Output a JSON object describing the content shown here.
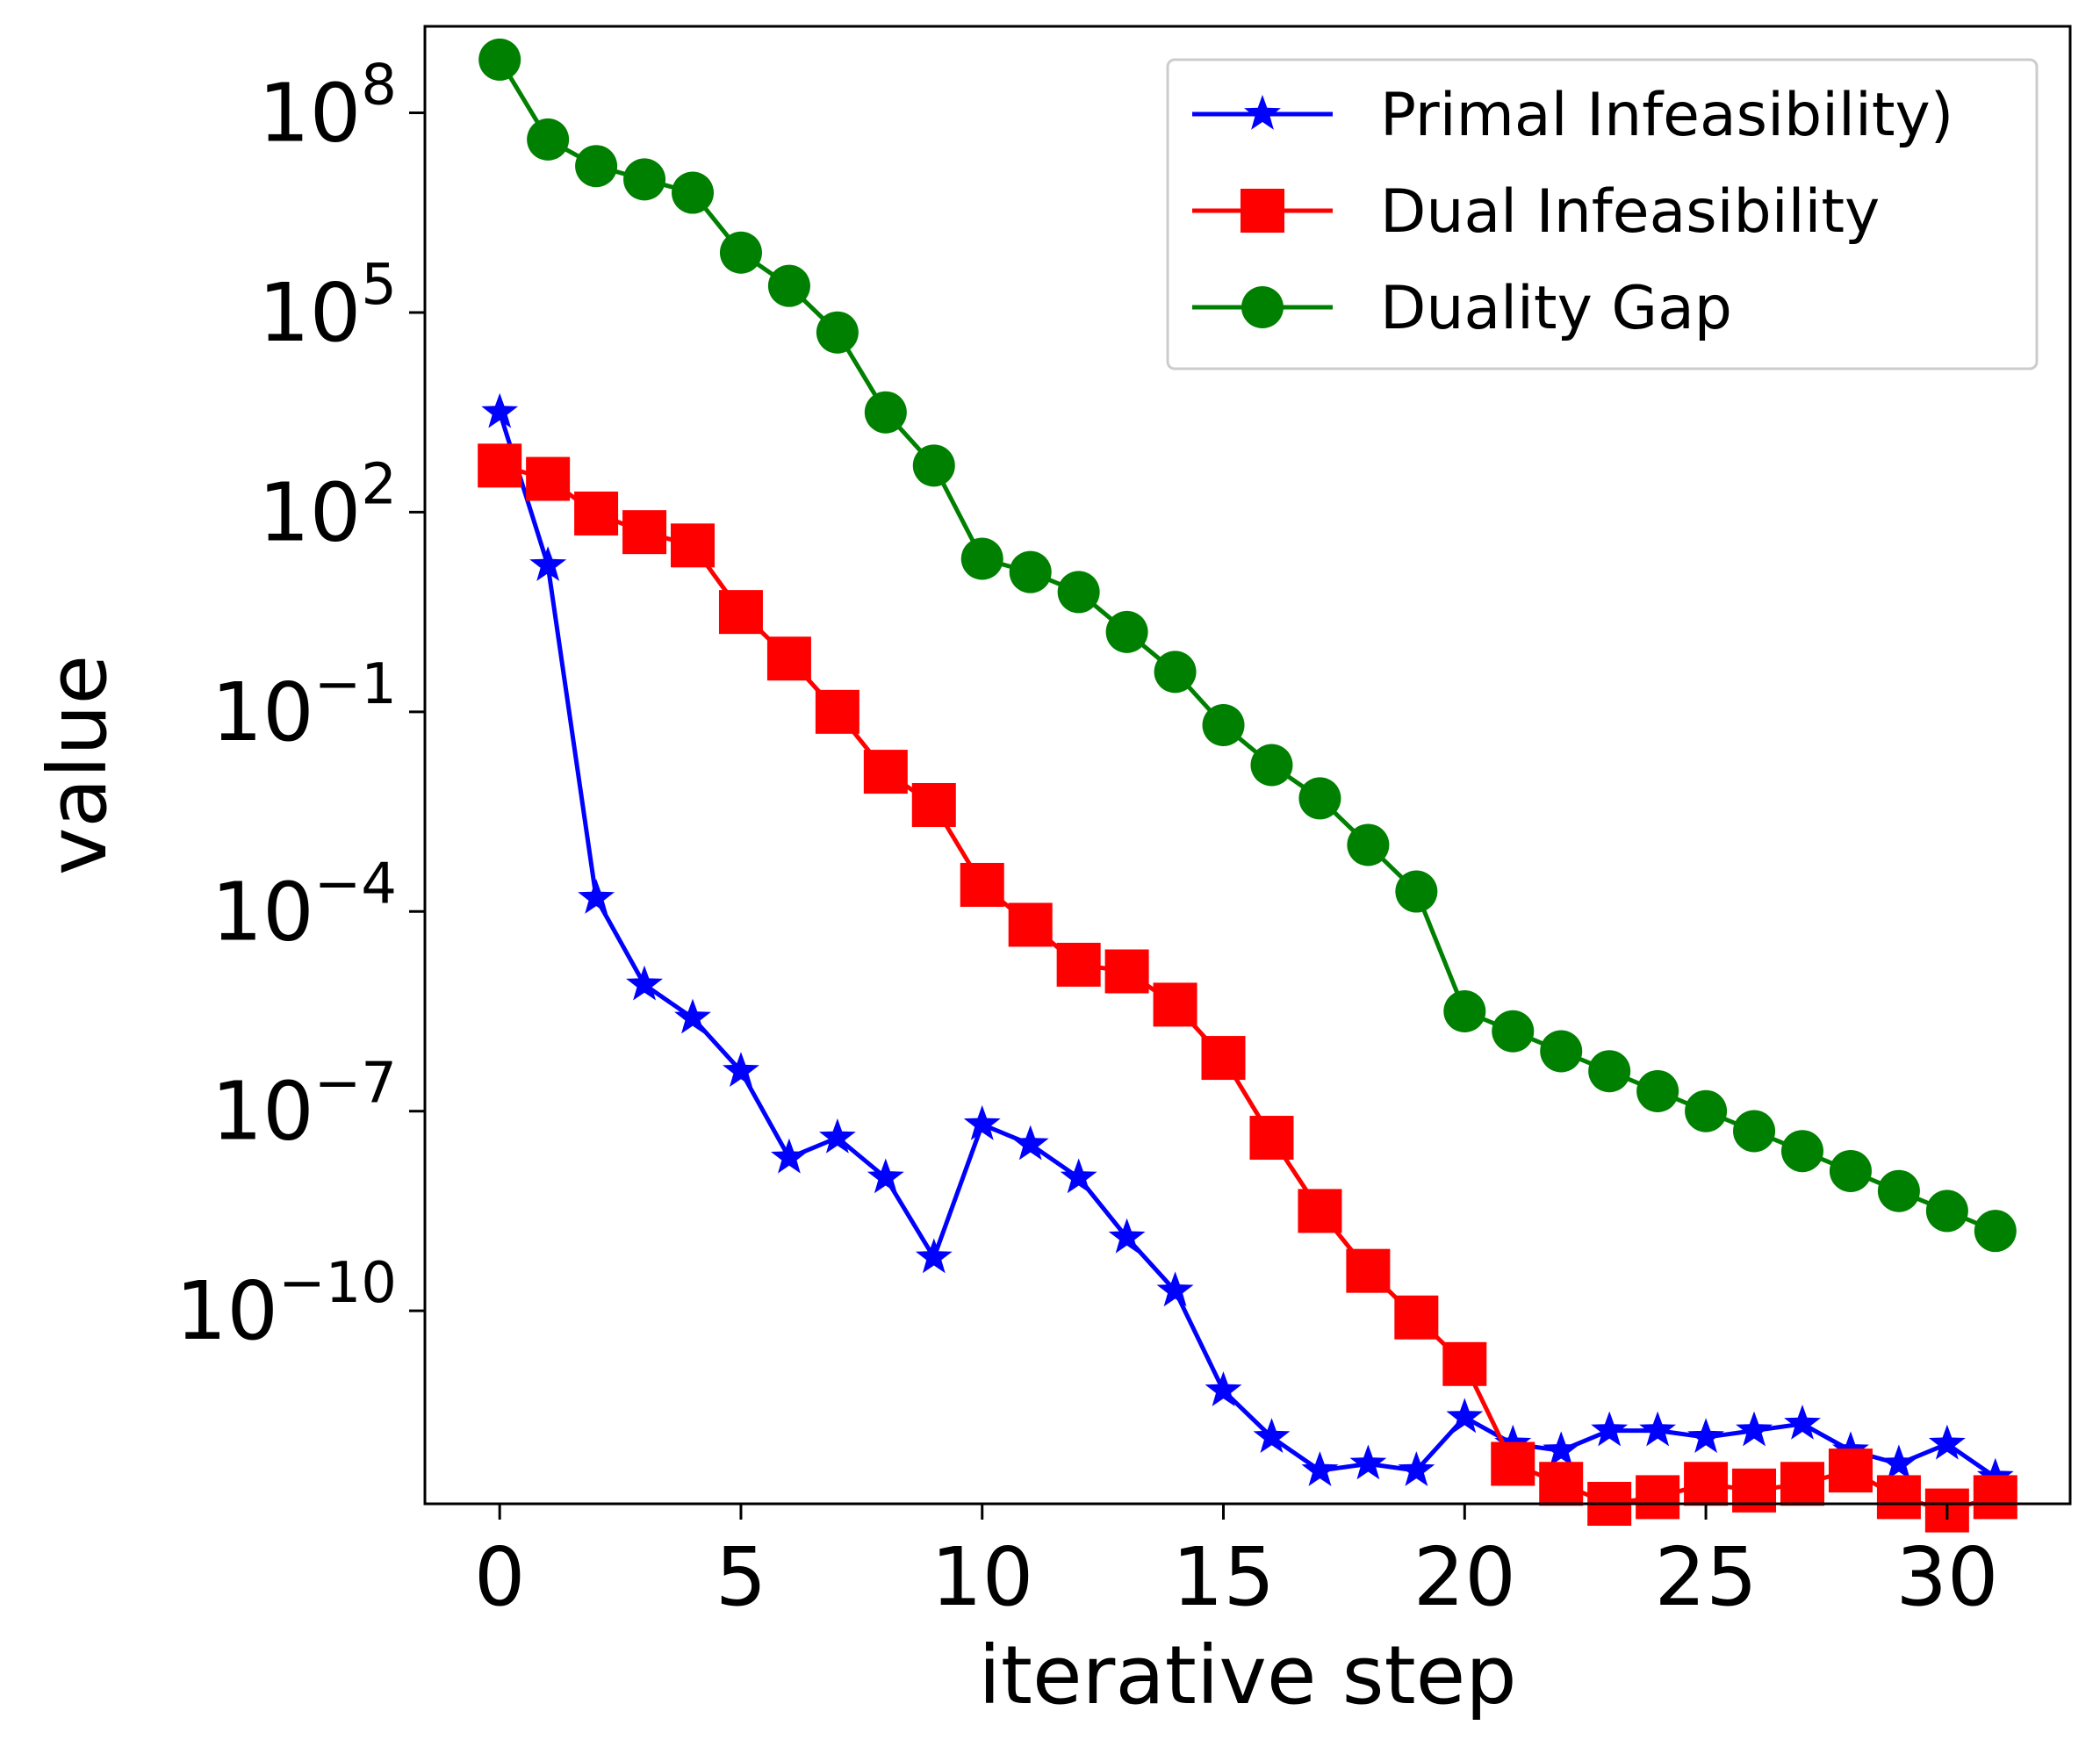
{
  "chart_data": {
    "type": "line",
    "title": "",
    "xlabel": "iterative step",
    "ylabel": "value",
    "yscale": "log",
    "xlim": [
      -1.55,
      32.55
    ],
    "ylim_log10": [
      -12.9,
      9.3
    ],
    "xticks": [
      0,
      5,
      10,
      15,
      20,
      25,
      30
    ],
    "yticks": [
      {
        "base": "10",
        "exp": "8",
        "value_log10": 8
      },
      {
        "base": "10",
        "exp": "5",
        "value_log10": 5
      },
      {
        "base": "10",
        "exp": "2",
        "value_log10": 2
      },
      {
        "base": "10",
        "exp": "−1",
        "value_log10": -1
      },
      {
        "base": "10",
        "exp": "−4",
        "value_log10": -4
      },
      {
        "base": "10",
        "exp": "−7",
        "value_log10": -7
      },
      {
        "base": "10",
        "exp": "−10",
        "value_log10": -10
      }
    ],
    "legend_position": "top-right",
    "x": [
      0,
      1,
      2,
      3,
      4,
      5,
      6,
      7,
      8,
      9,
      10,
      11,
      12,
      13,
      14,
      15,
      16,
      17,
      18,
      19,
      20,
      21,
      22,
      23,
      24,
      25,
      26,
      27,
      28,
      29,
      30,
      31
    ],
    "series": [
      {
        "name": "Primal Infeasibility)",
        "color": "#0000ff",
        "marker": "star",
        "values_log10": [
          3.5,
          1.2,
          -3.8,
          -5.1,
          -5.6,
          -6.4,
          -7.7,
          -7.4,
          -8.0,
          -9.2,
          -7.2,
          -7.5,
          -8.0,
          -8.9,
          -9.7,
          -11.2,
          -11.9,
          -12.4,
          -12.3,
          -12.4,
          -11.6,
          -12.0,
          -12.1,
          -11.8,
          -11.8,
          -11.9,
          -11.8,
          -11.7,
          -12.1,
          -12.3,
          -12.0,
          -12.5
        ]
      },
      {
        "name": "Dual Infeasibility",
        "color": "#ff0000",
        "marker": "square",
        "values_log10": [
          2.7,
          2.5,
          1.98,
          1.7,
          1.5,
          0.5,
          -0.2,
          -1.0,
          -1.9,
          -2.4,
          -3.6,
          -4.2,
          -4.8,
          -4.9,
          -5.4,
          -6.2,
          -7.4,
          -8.5,
          -9.4,
          -10.1,
          -10.8,
          -12.3,
          -12.6,
          -12.9,
          -12.8,
          -12.6,
          -12.7,
          -12.6,
          -12.4,
          -12.8,
          -13.0,
          -12.8
        ]
      },
      {
        "name": "Duality Gap",
        "color": "#008000",
        "marker": "circle",
        "values_log10": [
          8.8,
          7.6,
          7.2,
          7.0,
          6.8,
          5.9,
          5.4,
          4.7,
          3.5,
          2.7,
          1.3,
          1.1,
          0.8,
          0.2,
          -0.4,
          -1.2,
          -1.8,
          -2.3,
          -3.0,
          -3.7,
          -5.5,
          -5.8,
          -6.1,
          -6.4,
          -6.7,
          -7.0,
          -7.3,
          -7.6,
          -7.9,
          -8.2,
          -8.5,
          -8.8
        ]
      }
    ]
  }
}
